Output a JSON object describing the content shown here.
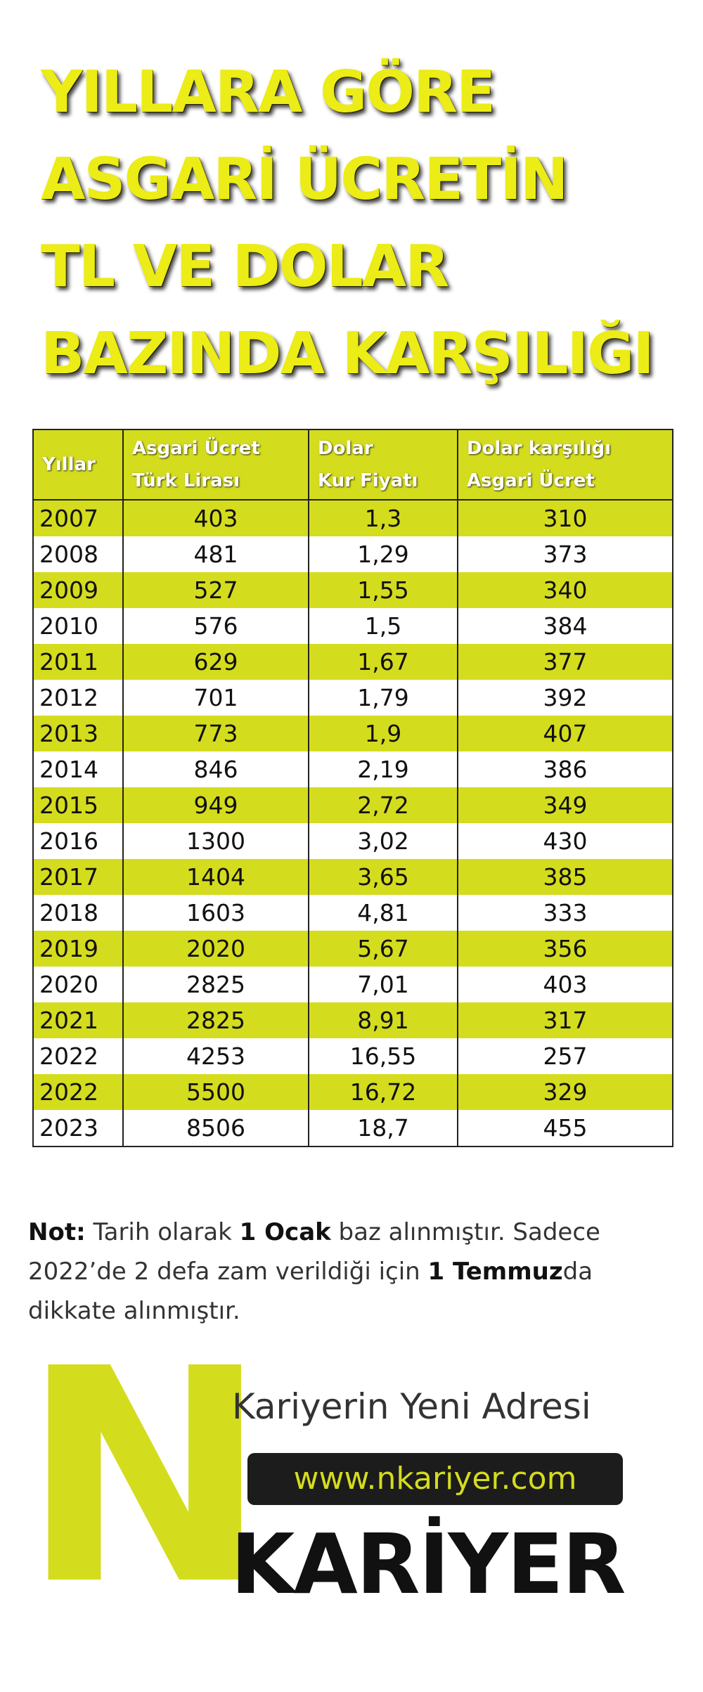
{
  "title": {
    "lines": [
      "YILLARA GÖRE",
      "ASGARİ ÜCRETİN",
      "TL VE DOLAR",
      "BAZINDA KARŞILIĞI"
    ]
  },
  "table": {
    "headers": [
      {
        "line1": "Yıllar",
        "line2": ""
      },
      {
        "line1": "Asgari Ücret",
        "line2": "Türk Lirası"
      },
      {
        "line1": "Dolar",
        "line2": "Kur Fiyatı"
      },
      {
        "line1": "Dolar karşılığı",
        "line2": "Asgari Ücret"
      }
    ],
    "rows": [
      [
        "2007",
        "403",
        "1,3",
        "310"
      ],
      [
        "2008",
        "481",
        "1,29",
        "373"
      ],
      [
        "2009",
        "527",
        "1,55",
        "340"
      ],
      [
        "2010",
        "576",
        "1,5",
        "384"
      ],
      [
        "2011",
        "629",
        "1,67",
        "377"
      ],
      [
        "2012",
        "701",
        "1,79",
        "392"
      ],
      [
        "2013",
        "773",
        "1,9",
        "407"
      ],
      [
        "2014",
        "846",
        "2,19",
        "386"
      ],
      [
        "2015",
        "949",
        "2,72",
        "349"
      ],
      [
        "2016",
        "1300",
        "3,02",
        "430"
      ],
      [
        "2017",
        "1404",
        "3,65",
        "385"
      ],
      [
        "2018",
        "1603",
        "4,81",
        "333"
      ],
      [
        "2019",
        "2020",
        "5,67",
        "356"
      ],
      [
        "2020",
        "2825",
        "7,01",
        "403"
      ],
      [
        "2021",
        "2825",
        "8,91",
        "317"
      ],
      [
        "2022",
        "4253",
        "16,55",
        "257"
      ],
      [
        "2022",
        "5500",
        "16,72",
        "329"
      ],
      [
        "2023",
        "8506",
        "18,7",
        "455"
      ]
    ]
  },
  "note": {
    "label": "Not:",
    "text1": " Tarih olarak ",
    "bold1": "1 Ocak",
    "text2": "  baz alınmıştır. Sadece 2022’de 2 defa zam verildiği için ",
    "bold2": "1 Temmuz",
    "text3": "da dikkate alınmıştır."
  },
  "brand": {
    "letter": "N",
    "tagline": "Kariyerin Yeni Adresi",
    "url": "www.nkariyer.com",
    "name": "KARİYER"
  },
  "colors": {
    "accent": "#d4dc1e",
    "title": "#ecec16",
    "dark": "#1c1c1c"
  }
}
